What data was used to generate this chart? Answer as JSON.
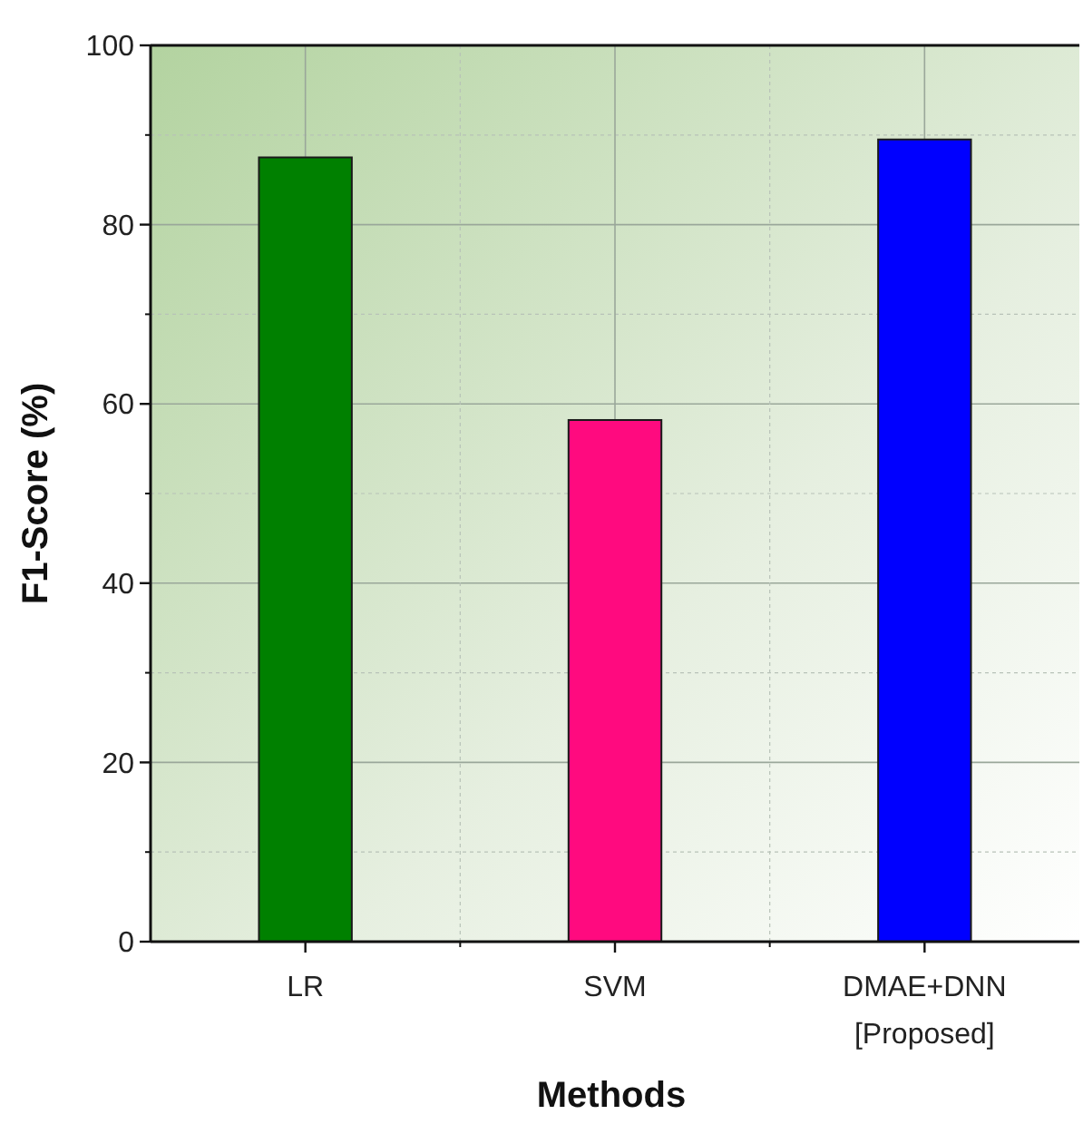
{
  "chart_data": {
    "type": "bar",
    "xlabel": "Methods",
    "ylabel": "F1-Score (%)",
    "categories": [
      "LR",
      "SVM",
      "DMAE+DNN\n[Proposed]"
    ],
    "values": [
      87.5,
      58.2,
      89.5
    ],
    "colors": [
      "#008000",
      "#ff0a7f",
      "#0000ff"
    ],
    "ylim": [
      0,
      100
    ],
    "yticks": [
      0,
      20,
      40,
      60,
      80,
      100
    ],
    "grid": true
  }
}
